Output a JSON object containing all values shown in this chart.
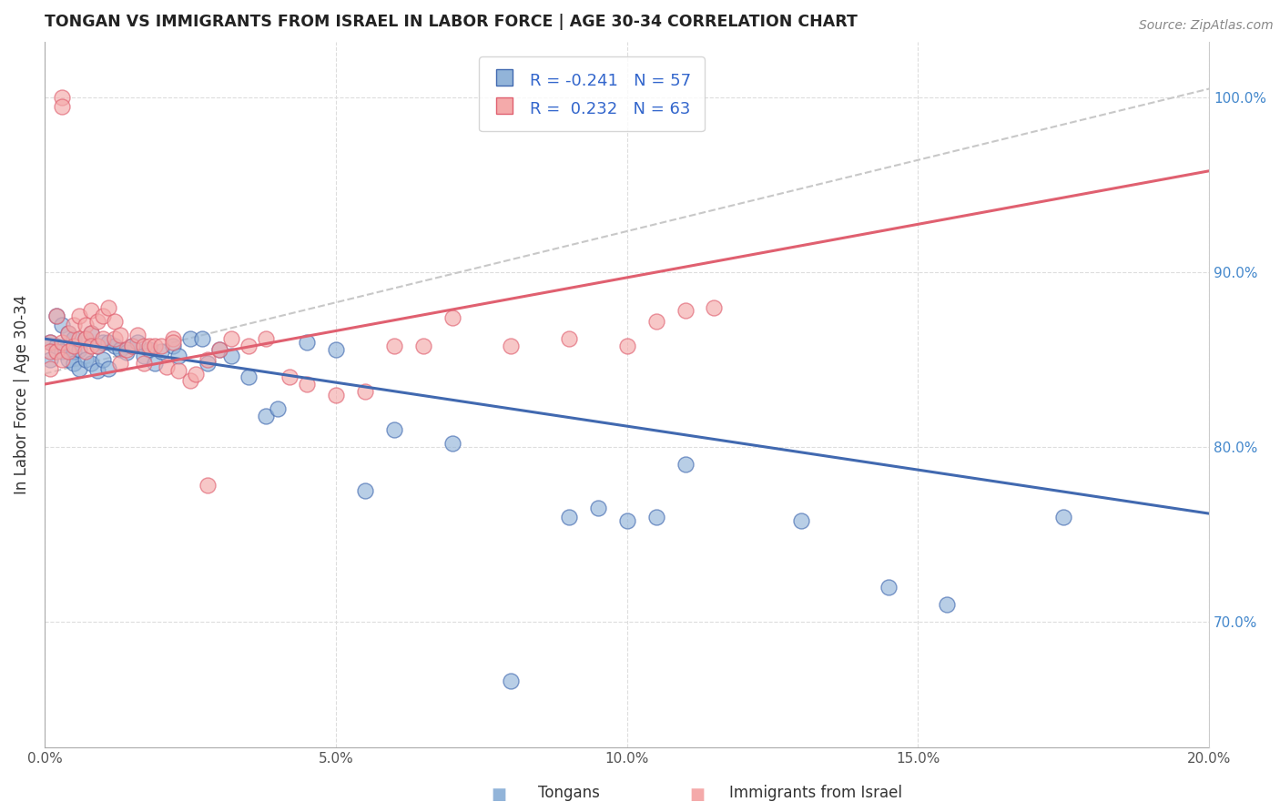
{
  "title": "TONGAN VS IMMIGRANTS FROM ISRAEL IN LABOR FORCE | AGE 30-34 CORRELATION CHART",
  "source": "Source: ZipAtlas.com",
  "ylabel": "In Labor Force | Age 30-34",
  "legend_label_blue": "Tongans",
  "legend_label_pink": "Immigrants from Israel",
  "R_blue": -0.241,
  "N_blue": 57,
  "R_pink": 0.232,
  "N_pink": 63,
  "xmin": 0.0,
  "xmax": 0.2,
  "ymin": 0.628,
  "ymax": 1.032,
  "x_ticks": [
    0.0,
    0.05,
    0.1,
    0.15,
    0.2
  ],
  "x_tick_labels": [
    "0.0%",
    "5.0%",
    "10.0%",
    "15.0%",
    "20.0%"
  ],
  "y_ticks": [
    0.7,
    0.8,
    0.9,
    1.0
  ],
  "y_tick_labels": [
    "70.0%",
    "80.0%",
    "90.0%",
    "100.0%"
  ],
  "color_blue": "#92B4D9",
  "color_pink": "#F4AAAA",
  "color_blue_line": "#4169B0",
  "color_pink_line": "#E06070",
  "color_dashed": "#C8C8C8",
  "blue_line_x0": 0.0,
  "blue_line_y0": 0.862,
  "blue_line_x1": 0.2,
  "blue_line_y1": 0.762,
  "pink_line_x0": 0.0,
  "pink_line_y0": 0.836,
  "pink_line_x1": 0.2,
  "pink_line_y1": 0.958,
  "dash_line_x0": 0.0,
  "dash_line_y0": 0.842,
  "dash_line_x1": 0.2,
  "dash_line_y1": 1.005,
  "blue_dots_x": [
    0.001,
    0.001,
    0.002,
    0.002,
    0.003,
    0.003,
    0.004,
    0.004,
    0.005,
    0.005,
    0.005,
    0.006,
    0.006,
    0.007,
    0.007,
    0.008,
    0.008,
    0.009,
    0.009,
    0.01,
    0.01,
    0.011,
    0.011,
    0.012,
    0.013,
    0.014,
    0.015,
    0.016,
    0.017,
    0.018,
    0.019,
    0.02,
    0.022,
    0.023,
    0.025,
    0.027,
    0.028,
    0.03,
    0.032,
    0.035,
    0.038,
    0.04,
    0.045,
    0.05,
    0.055,
    0.06,
    0.07,
    0.08,
    0.09,
    0.095,
    0.1,
    0.105,
    0.11,
    0.13,
    0.145,
    0.155,
    0.175
  ],
  "blue_dots_y": [
    0.86,
    0.85,
    0.875,
    0.858,
    0.87,
    0.855,
    0.865,
    0.85,
    0.862,
    0.855,
    0.848,
    0.856,
    0.845,
    0.862,
    0.85,
    0.865,
    0.848,
    0.858,
    0.844,
    0.86,
    0.85,
    0.86,
    0.845,
    0.858,
    0.856,
    0.854,
    0.858,
    0.86,
    0.852,
    0.856,
    0.848,
    0.855,
    0.858,
    0.852,
    0.862,
    0.862,
    0.848,
    0.856,
    0.852,
    0.84,
    0.818,
    0.822,
    0.86,
    0.856,
    0.775,
    0.81,
    0.802,
    0.666,
    0.76,
    0.765,
    0.758,
    0.76,
    0.79,
    0.758,
    0.72,
    0.71,
    0.76
  ],
  "pink_dots_x": [
    0.001,
    0.001,
    0.001,
    0.002,
    0.002,
    0.003,
    0.003,
    0.003,
    0.003,
    0.004,
    0.004,
    0.005,
    0.005,
    0.006,
    0.006,
    0.007,
    0.007,
    0.007,
    0.008,
    0.008,
    0.008,
    0.009,
    0.009,
    0.01,
    0.01,
    0.011,
    0.012,
    0.012,
    0.013,
    0.013,
    0.014,
    0.015,
    0.016,
    0.017,
    0.018,
    0.019,
    0.02,
    0.021,
    0.022,
    0.023,
    0.025,
    0.026,
    0.028,
    0.03,
    0.032,
    0.035,
    0.038,
    0.042,
    0.045,
    0.05,
    0.055,
    0.06,
    0.065,
    0.07,
    0.08,
    0.09,
    0.1,
    0.105,
    0.11,
    0.115,
    0.017,
    0.022,
    0.028
  ],
  "pink_dots_y": [
    0.86,
    0.855,
    0.845,
    0.875,
    0.855,
    1.0,
    0.995,
    0.86,
    0.85,
    0.865,
    0.855,
    0.87,
    0.858,
    0.875,
    0.862,
    0.87,
    0.862,
    0.855,
    0.878,
    0.865,
    0.858,
    0.872,
    0.858,
    0.875,
    0.862,
    0.88,
    0.872,
    0.862,
    0.848,
    0.864,
    0.856,
    0.858,
    0.864,
    0.858,
    0.858,
    0.858,
    0.858,
    0.846,
    0.862,
    0.844,
    0.838,
    0.842,
    0.85,
    0.856,
    0.862,
    0.858,
    0.862,
    0.84,
    0.836,
    0.83,
    0.832,
    0.858,
    0.858,
    0.874,
    0.858,
    0.862,
    0.858,
    0.872,
    0.878,
    0.88,
    0.848,
    0.86,
    0.778
  ]
}
